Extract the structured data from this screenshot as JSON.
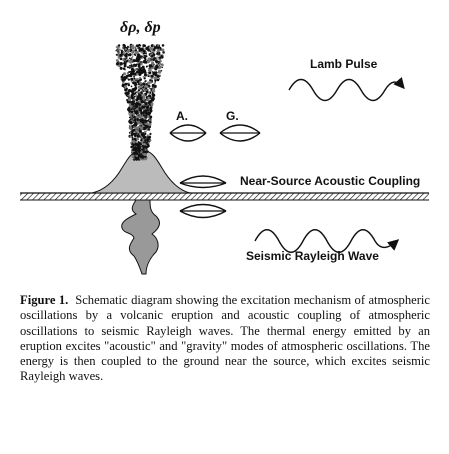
{
  "diagram": {
    "source_label": "δρ, δp",
    "lamb_label": "Lamb Pulse",
    "acoustic_label": "A.",
    "gravity_label": "G.",
    "coupling_label": "Near-Source Acoustic Coupling",
    "rayleigh_label": "Seismic Rayleigh Wave"
  },
  "caption": {
    "figure_label": "Figure 1.",
    "text": "Schematic diagram showing the excitation mechanism of atmospheric oscillations by a volcanic eruption and acoustic coupling of atmospheric oscillations to seismic Rayleigh waves. The thermal energy emitted by an eruption excites \"acoustic\" and \"gravity\" modes of atmospheric oscillations. The energy is then coupled to the ground near the source, which excites seismic Rayleigh waves."
  },
  "colors": {
    "ink": "#111111",
    "background": "#ffffff"
  }
}
